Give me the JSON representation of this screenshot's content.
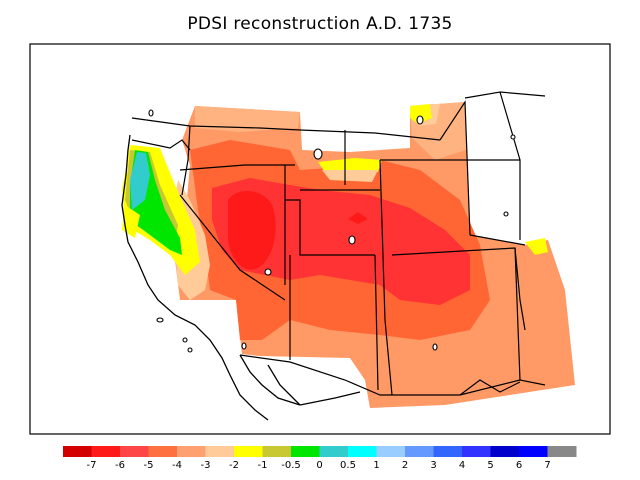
{
  "title": "PDSI reconstruction A.D. 1735",
  "legend": {
    "swatches": [
      {
        "color": "#d40000"
      },
      {
        "color": "#ff1a1a"
      },
      {
        "color": "#ff4646"
      },
      {
        "color": "#ff7040"
      },
      {
        "color": "#ffa070"
      },
      {
        "color": "#ffcc99"
      },
      {
        "color": "#ffff00"
      },
      {
        "color": "#c8c832"
      },
      {
        "color": "#00e600"
      },
      {
        "color": "#33cccc"
      },
      {
        "color": "#00ffff"
      },
      {
        "color": "#99ccff"
      },
      {
        "color": "#6699ff"
      },
      {
        "color": "#3366ff"
      },
      {
        "color": "#3333ff"
      },
      {
        "color": "#0000cc"
      },
      {
        "color": "#0000ff"
      },
      {
        "color": "#888888"
      }
    ],
    "tick_labels": [
      "-7",
      "-6",
      "-5",
      "-4",
      "-3",
      "-2",
      "-1",
      "-0.5",
      "0",
      "0.5",
      "1",
      "2",
      "3",
      "4",
      "5",
      "6",
      "7"
    ]
  },
  "colors": {
    "orange": "#ff9966",
    "light_orange": "#ffb380",
    "peach": "#ffcc99",
    "red_orange": "#ff6633",
    "red": "#ff3333",
    "deep_red": "#ff1a1a",
    "yellow": "#ffff00",
    "olive": "#c8c832",
    "green": "#00e600",
    "teal": "#33cccc"
  }
}
